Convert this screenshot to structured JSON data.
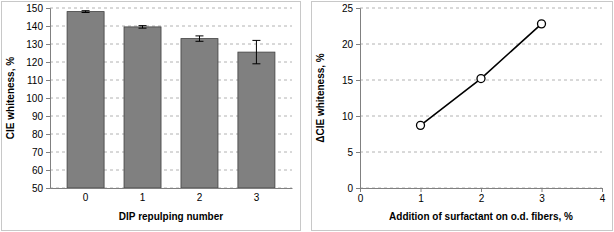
{
  "chart_data": [
    {
      "type": "bar",
      "x_label": "DIP repulping number",
      "y_label": "CIE whiteness, %",
      "categories": [
        "0",
        "1",
        "2",
        "3"
      ],
      "values": [
        148,
        139.5,
        133,
        125.5
      ],
      "errors": [
        0.5,
        0.7,
        1.5,
        6.5
      ],
      "color": "#808080",
      "ylim": [
        50,
        150
      ],
      "yticks": [
        50,
        60,
        70,
        80,
        90,
        100,
        110,
        120,
        130,
        140,
        150
      ],
      "grid": true
    },
    {
      "type": "line",
      "x_label": "Addition of surfactant on o.d. fibers, %",
      "y_label": "ΔCIE whiteness, %",
      "x": [
        1,
        2,
        3
      ],
      "values": [
        8.7,
        15.2,
        22.8
      ],
      "color": "#000000",
      "marker": "circle",
      "line_style": "solid",
      "xlim": [
        0,
        4
      ],
      "xticks": [
        0,
        1,
        2,
        3,
        4
      ],
      "ylim": [
        0,
        25
      ],
      "yticks": [
        0,
        5,
        10,
        15,
        20,
        25
      ],
      "grid": true
    }
  ]
}
